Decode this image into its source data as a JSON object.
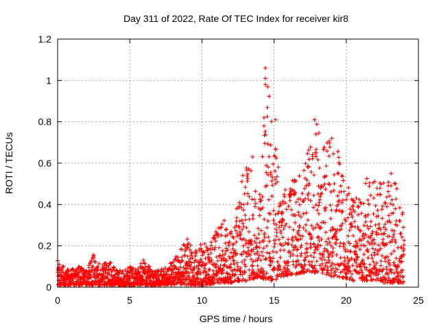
{
  "chart_data": {
    "type": "scatter",
    "title": "Day 311 of 2022, Rate Of TEC Index for receiver kir8",
    "xlabel": "GPS time / hours",
    "ylabel": "ROTI / TECUs",
    "xlim": [
      0,
      25
    ],
    "ylim": [
      0,
      1.2
    ],
    "xticks": [
      0,
      5,
      10,
      15,
      20,
      25
    ],
    "yticks": [
      0,
      0.2,
      0.4,
      0.6,
      0.8,
      1.0,
      1.2
    ],
    "xtick_labels": [
      "0",
      "5",
      "10",
      "15",
      "20",
      "25"
    ],
    "ytick_labels": [
      "0",
      "0.2",
      "0.4",
      "0.6",
      "0.8",
      "1",
      "1.2"
    ],
    "grid": true,
    "marker": "+",
    "color": "#ff0000",
    "envelope": {
      "x": [
        0,
        0.5,
        1,
        1.5,
        2,
        2.5,
        3,
        3.5,
        4,
        4.5,
        5,
        5.5,
        6,
        6.5,
        7,
        7.5,
        8,
        8.5,
        9,
        9.5,
        10,
        10.5,
        11,
        11.5,
        12,
        12.5,
        13,
        13.5,
        14,
        14.5,
        15,
        15.5,
        16,
        16.5,
        17,
        17.5,
        18,
        18.5,
        19,
        19.5,
        20,
        20.5,
        21,
        21.5,
        22,
        22.5,
        23,
        23.5,
        24
      ],
      "lower": [
        0.01,
        0.01,
        0.01,
        0.01,
        0.01,
        0.01,
        0.01,
        0.01,
        0.01,
        0.01,
        0.01,
        0.01,
        0.01,
        0.01,
        0.01,
        0.01,
        0.01,
        0.01,
        0.01,
        0.01,
        0.01,
        0.01,
        0.02,
        0.02,
        0.02,
        0.03,
        0.03,
        0.04,
        0.05,
        0.03,
        0.03,
        0.05,
        0.06,
        0.06,
        0.07,
        0.07,
        0.07,
        0.06,
        0.05,
        0.05,
        0.04,
        0.03,
        0.03,
        0.03,
        0.03,
        0.02,
        0.02,
        0.02,
        0.02
      ],
      "upper": [
        0.15,
        0.09,
        0.09,
        0.1,
        0.08,
        0.16,
        0.1,
        0.14,
        0.09,
        0.08,
        0.1,
        0.09,
        0.14,
        0.09,
        0.08,
        0.1,
        0.13,
        0.18,
        0.24,
        0.17,
        0.22,
        0.2,
        0.28,
        0.35,
        0.3,
        0.4,
        0.63,
        0.55,
        0.45,
        1.06,
        0.8,
        0.45,
        0.5,
        0.55,
        0.6,
        0.69,
        0.81,
        0.72,
        0.72,
        0.65,
        0.55,
        0.45,
        0.42,
        0.55,
        0.52,
        0.5,
        0.55,
        0.5,
        0.35
      ]
    },
    "notable_points": [
      {
        "x": 14.4,
        "y": 1.06
      },
      {
        "x": 14.4,
        "y": 1.01
      },
      {
        "x": 14.4,
        "y": 0.98
      },
      {
        "x": 14.3,
        "y": 0.82
      },
      {
        "x": 15.1,
        "y": 0.81
      },
      {
        "x": 17.8,
        "y": 0.81
      },
      {
        "x": 17.9,
        "y": 0.74
      },
      {
        "x": 19.0,
        "y": 0.72
      },
      {
        "x": 15.1,
        "y": 0.67
      },
      {
        "x": 13.5,
        "y": 0.63
      },
      {
        "x": 23.1,
        "y": 0.55
      }
    ]
  }
}
